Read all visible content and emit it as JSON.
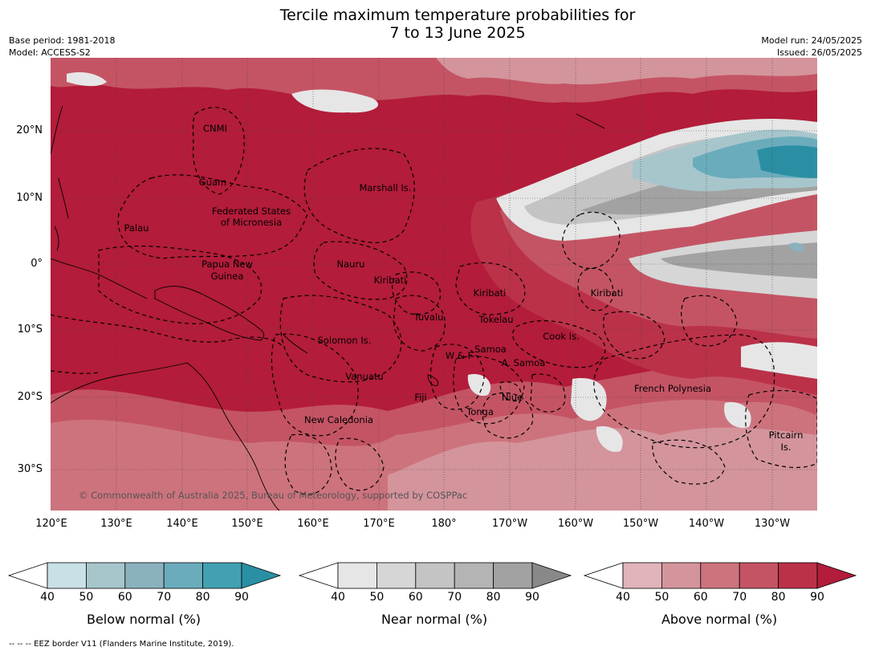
{
  "title": {
    "line1": "Tercile maximum temperature probabilities for",
    "line2": "7 to 13 June 2025"
  },
  "header_left": {
    "base_period": "Base period: 1981-2018",
    "model": "Model: ACCESS-S2"
  },
  "header_right": {
    "model_run": "Model run: 24/05/2025",
    "issued": "Issued: 26/05/2025"
  },
  "lat_labels": [
    "20°N",
    "10°N",
    "0°",
    "10°S",
    "20°S",
    "30°S"
  ],
  "lon_labels": [
    "120°E",
    "130°E",
    "140°E",
    "150°E",
    "160°E",
    "170°E",
    "180°",
    "170°W",
    "160°W",
    "150°W",
    "140°W",
    "130°W"
  ],
  "regions": [
    "CNMI",
    "Guam",
    "Marshall Is.",
    "Federated States",
    "of Micronesia",
    "Palau",
    "Papua New",
    "Guinea",
    "Nauru",
    "Kiribati",
    "Kiribati",
    "Kiribati",
    "Tuvalu",
    "Tokelau",
    "Solomon Is.",
    "Cook Is.",
    "Samoa",
    "W & F",
    "A. Samoa",
    "Vanuatu",
    "Fiji",
    "Niue",
    "French Polynesia",
    "Tonga",
    "New Caledonia",
    "Pitcairn",
    "Is."
  ],
  "copyright": "© Commonwealth of Australia 2025, Bureau of Meteorology, supported by COSPPac",
  "colorbars": [
    {
      "title": "Below normal (%)",
      "ticks": [
        "40",
        "50",
        "60",
        "70",
        "80",
        "90"
      ],
      "colors": [
        "#ffffff",
        "#c8e0e6",
        "#a6c6cc",
        "#8ab2be",
        "#6aacbc",
        "#43a0b2",
        "#2b8fa3"
      ]
    },
    {
      "title": "Near normal (%)",
      "ticks": [
        "40",
        "50",
        "60",
        "70",
        "80",
        "90"
      ],
      "colors": [
        "#ffffff",
        "#e6e6e6",
        "#d6d6d6",
        "#c4c4c4",
        "#b4b4b4",
        "#a2a2a2",
        "#888888"
      ]
    },
    {
      "title": "Above normal (%)",
      "ticks": [
        "40",
        "50",
        "60",
        "70",
        "80",
        "90"
      ],
      "colors": [
        "#ffffff",
        "#e0b4ba",
        "#d4949c",
        "#cd737d",
        "#c45464",
        "#bb3148",
        "#b31c3a"
      ]
    }
  ],
  "footer": "--  --  -- EEZ border V11 (Flanders Marine Institute, 2019)."
}
